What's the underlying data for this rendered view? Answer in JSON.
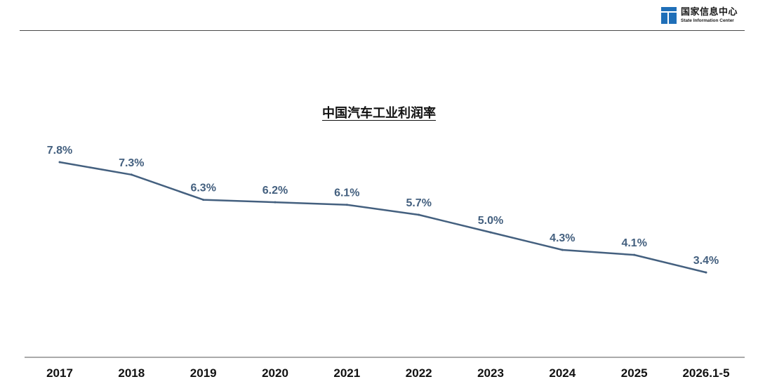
{
  "logo": {
    "name_cn": "国家信息中心",
    "name_en": "State Information Center"
  },
  "colors": {
    "line": "#44607f",
    "label": "#44607f",
    "axis": "#555555",
    "logo_blue": "#1f6fb8"
  },
  "chart_data": {
    "type": "line",
    "title": "中国汽车工业利润率",
    "xlabel": "",
    "ylabel": "",
    "categories": [
      "2017",
      "2018",
      "2019",
      "2020",
      "2021",
      "2022",
      "2023",
      "2024",
      "2025",
      "2026.1-5"
    ],
    "series": [
      {
        "values": [
          7.8,
          7.3,
          6.3,
          6.2,
          6.1,
          5.7,
          5.0,
          4.3,
          4.1,
          3.4
        ],
        "labels": [
          "7.8%",
          "7.3%",
          "6.3%",
          "6.2%",
          "6.1%",
          "5.7%",
          "5.0%",
          "4.3%",
          "4.1%",
          "3.4%"
        ]
      }
    ],
    "y_unit": "%",
    "grid": false,
    "legend": "none"
  }
}
